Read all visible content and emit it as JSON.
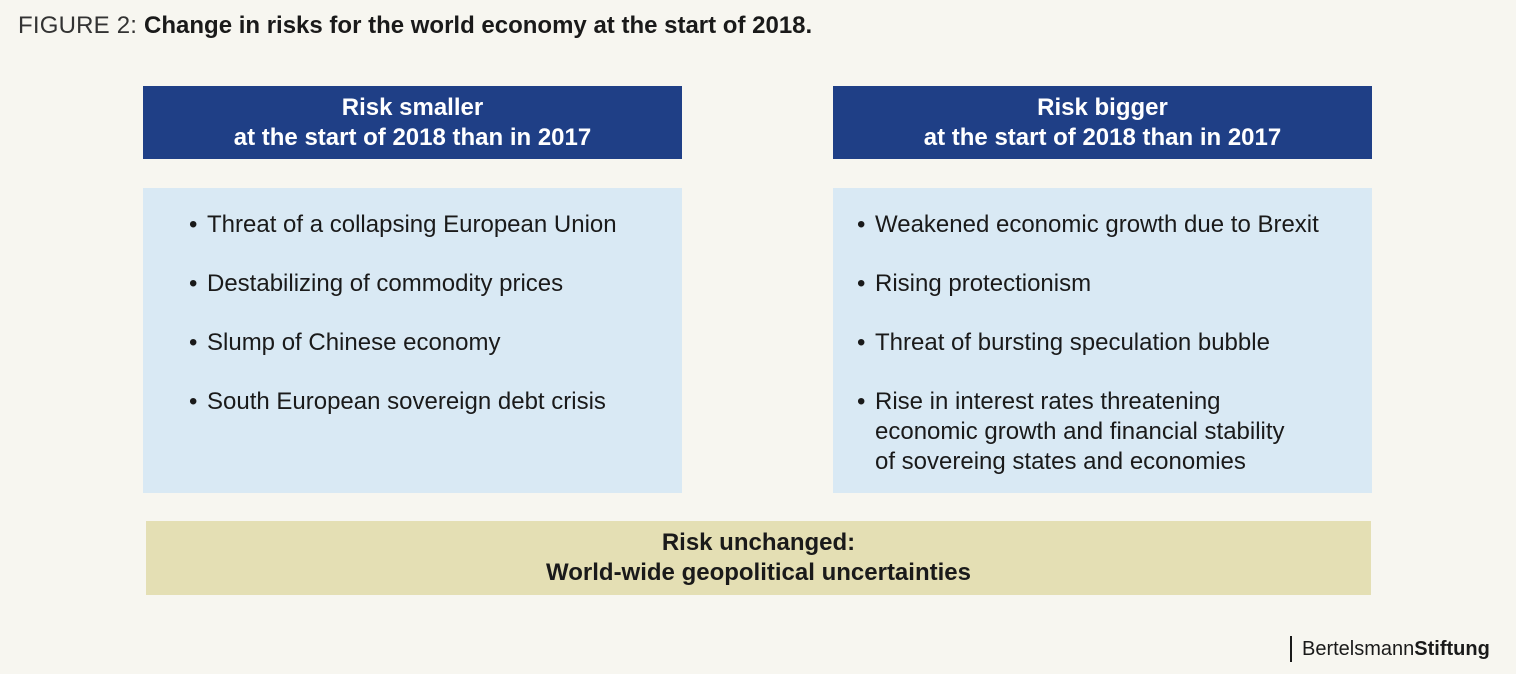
{
  "figure": {
    "label": "FIGURE 2: ",
    "title": "Change in risks for the world economy at the start of 2018."
  },
  "left": {
    "header_line1": "Risk smaller",
    "header_line2": "at the start of 2018 than in 2017",
    "items": [
      "Threat of a collapsing European Union",
      "Destabilizing of commodity prices",
      "Slump of Chinese economy",
      "South European sovereign debt crisis"
    ]
  },
  "right": {
    "header_line1": "Risk bigger",
    "header_line2": "at the start of 2018 than in 2017",
    "items": [
      "Weakened economic growth due to Brexit",
      "Rising protectionism",
      "Threat of bursting speculation bubble"
    ],
    "last_item_lines": [
      "Rise in interest rates threatening",
      "economic growth and financial stability",
      "of sovereing states and economies"
    ]
  },
  "unchanged": {
    "line1": "Risk unchanged:",
    "line2": "World-wide geopolitical uncertainties"
  },
  "brand": {
    "part1": "Bertelsmann",
    "part2": "Stiftung"
  },
  "colors": {
    "header_bg": "#1f3f86",
    "box_bg": "#d9e9f4",
    "unchanged_bg": "#e4dfb4",
    "page_bg": "#f7f6f0"
  }
}
